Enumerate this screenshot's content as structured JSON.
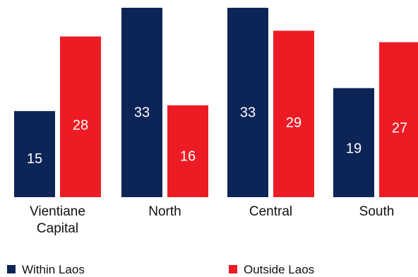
{
  "chart_data": {
    "type": "bar",
    "categories": [
      [
        "Vientiane",
        "Capital"
      ],
      [
        "North"
      ],
      [
        "Central"
      ],
      [
        "South"
      ]
    ],
    "series": [
      {
        "name": "Within Laos",
        "color": "#0d2456",
        "values": [
          15,
          33,
          33,
          19
        ]
      },
      {
        "name": "Outside Laos",
        "color": "#ed1c24",
        "values": [
          28,
          16,
          29,
          27
        ]
      }
    ],
    "ylim": [
      0,
      35
    ],
    "show_data_labels": true,
    "grid": false,
    "legend": "bottom"
  }
}
